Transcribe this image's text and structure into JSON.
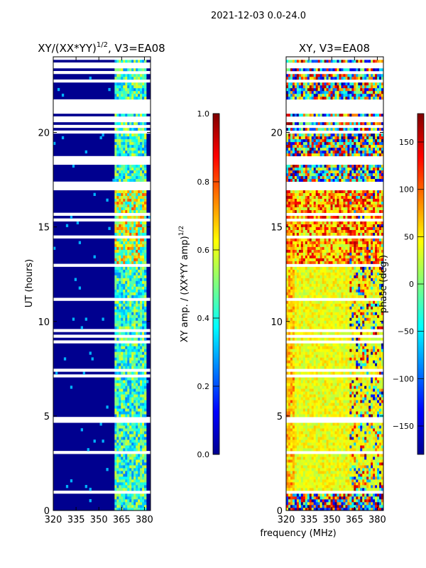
{
  "figure_title": "2021-12-03 0.0-24.0",
  "x_axis_label": "frequency (MHz)",
  "chart_data": [
    {
      "type": "heatmap",
      "title": "XY/(XX*YY)",
      "title_superscript": "1/2",
      "title_suffix": ", V3=EA08",
      "xlabel": "",
      "ylabel": "UT (hours)",
      "xlim": [
        320,
        384
      ],
      "ylim": [
        0,
        24
      ],
      "xticks": [
        320,
        335,
        350,
        365,
        380
      ],
      "yticks": [
        0,
        5,
        10,
        15,
        20
      ],
      "colorbar": {
        "label": "XY amp. / (XX*YY amp)",
        "label_superscript": "1/2",
        "range": [
          0.0,
          1.0
        ],
        "ticks": [
          "0.0",
          "0.2",
          "0.4",
          "0.6",
          "0.8",
          "1.0"
        ],
        "tick_values": [
          0.0,
          0.2,
          0.4,
          0.6,
          0.8,
          1.0
        ]
      },
      "colormap": "jet",
      "description_values": {
        "background_level": 0.0,
        "bright_band_mhz": [
          361,
          381
        ],
        "bright_band_level": 0.45,
        "elevated_block_hours": [
          13,
          17
        ],
        "elevated_block_level": 0.6
      }
    },
    {
      "type": "heatmap",
      "title": "XY, V3=EA08",
      "xlabel": "",
      "ylabel": "",
      "xlim": [
        320,
        384
      ],
      "ylim": [
        0,
        24
      ],
      "xticks": [
        320,
        335,
        350,
        365,
        380
      ],
      "yticks": [
        0,
        5,
        10,
        15,
        20
      ],
      "colorbar": {
        "label": "phase (deg.)",
        "range": [
          -180,
          180
        ],
        "ticks": [
          "−150",
          "−100",
          "−50",
          "0",
          "50",
          "100",
          "150"
        ],
        "tick_values": [
          -150,
          -100,
          -50,
          0,
          50,
          100,
          150
        ]
      },
      "colormap": "jet",
      "description_values": {
        "typical_phase_deg": 40,
        "noisy_upper_band_hours": [
          17,
          24
        ],
        "noisy_lower_band_hours": [
          0,
          1
        ]
      }
    }
  ],
  "colors": {
    "jet_dark_blue": "#00008f",
    "flag_white": "#ffffff",
    "axis": "#000000"
  }
}
